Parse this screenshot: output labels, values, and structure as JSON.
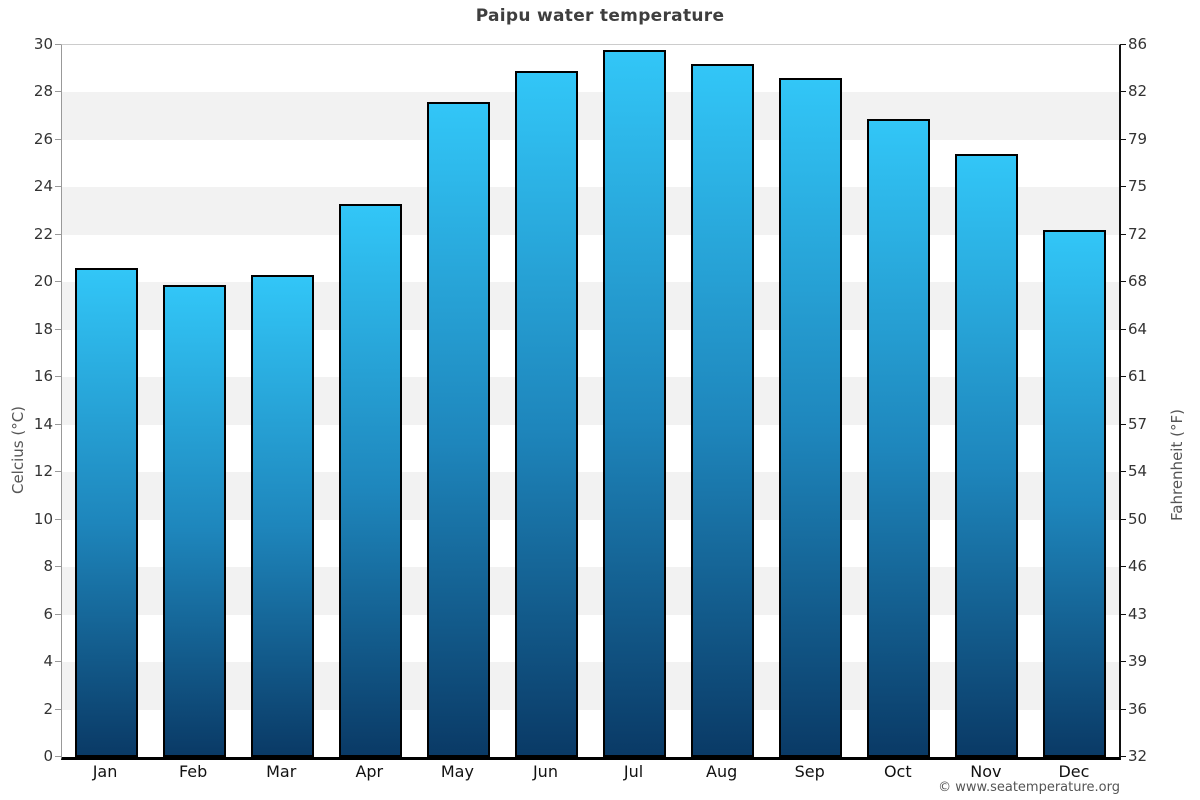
{
  "title": "Paipu water temperature",
  "chart_data": {
    "type": "bar",
    "title": "Paipu water temperature",
    "categories": [
      "Jan",
      "Feb",
      "Mar",
      "Apr",
      "May",
      "Jun",
      "Jul",
      "Aug",
      "Sep",
      "Oct",
      "Nov",
      "Dec"
    ],
    "values": [
      20.6,
      19.9,
      20.3,
      23.3,
      27.6,
      28.9,
      29.8,
      29.2,
      28.6,
      26.9,
      25.4,
      22.2
    ],
    "unit": "°C",
    "y_axis_left": {
      "title": "Celcius (°C)",
      "ticks_top_to_bottom": [
        30,
        28,
        26,
        24,
        22,
        20,
        18,
        16,
        14,
        12,
        10,
        8,
        6,
        4,
        2,
        0
      ],
      "range": [
        0,
        30
      ]
    },
    "y_axis_right": {
      "title": "Fahrenheit (°F)",
      "ticks_top_to_bottom": [
        86,
        82,
        79,
        75,
        72,
        68,
        64,
        61,
        57,
        54,
        50,
        46,
        43,
        39,
        36,
        32
      ]
    },
    "grid": "alternating horizontal bands every 2°C",
    "legend": "none"
  },
  "footer": {
    "copyright": "© www.seatemperature.org"
  },
  "colors": {
    "bar_gradient_top": "#32c6f7",
    "bar_gradient_mid": "#1e86bc",
    "bar_gradient_bottom": "#0a3a66",
    "bar_border": "#000000",
    "band_gray": "#f2f2f2",
    "title_text": "#3e3e3e",
    "tick_text": "#333333",
    "axis_title_text": "#555555",
    "copyright_text": "#555555"
  }
}
